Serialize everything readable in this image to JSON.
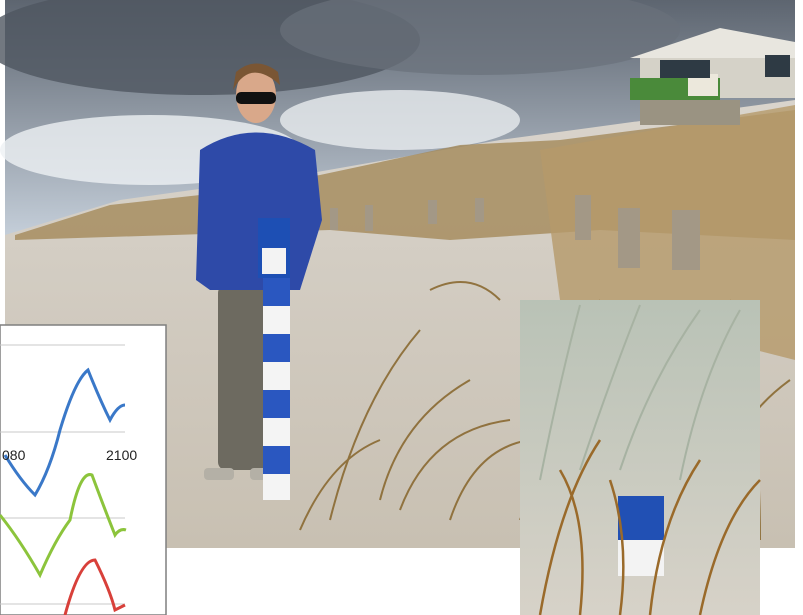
{
  "inset_chart": {
    "x_labels": [
      "080",
      "2100"
    ]
  }
}
